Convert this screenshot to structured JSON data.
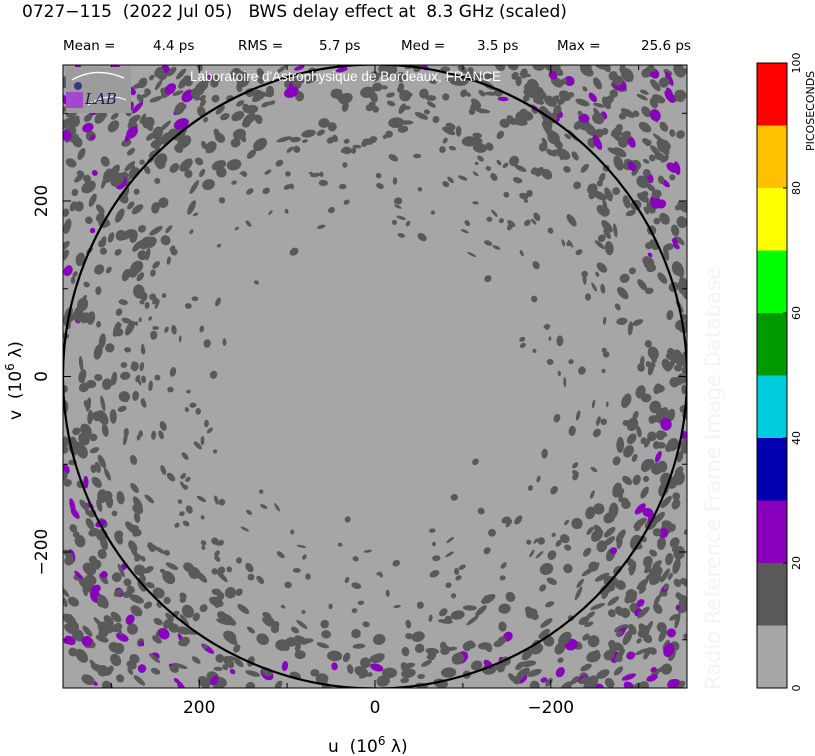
{
  "chart_data": {
    "type": "heatmap",
    "title": "0727−115  (2022 Jul 05)   BWS delay effect at  8.3 GHz (scaled)",
    "stats": [
      {
        "label": "Mean =",
        "value": "4.4 ps",
        "number": 4.4
      },
      {
        "label": "RMS =",
        "value": "5.7 ps",
        "number": 5.7
      },
      {
        "label": "Med =",
        "value": "3.5 ps",
        "number": 3.5
      },
      {
        "label": "Max =",
        "value": "25.6 ps",
        "number": 25.6
      }
    ],
    "xlabel": {
      "main": "u  (10",
      "sup": "6",
      "tail": " λ)"
    },
    "ylabel": {
      "main": "v  (10",
      "sup": "6",
      "tail": " λ)"
    },
    "xlim": [
      355,
      -355
    ],
    "ylim": [
      -355,
      355
    ],
    "xticks": [
      {
        "value": 200,
        "label": "200"
      },
      {
        "value": 0,
        "label": "0"
      },
      {
        "value": -200,
        "label": "−200"
      }
    ],
    "yticks": [
      {
        "value": 200,
        "label": "200"
      },
      {
        "value": 0,
        "label": "0"
      },
      {
        "value": -200,
        "label": "−200"
      }
    ],
    "circle_radius": 355,
    "colorbar": {
      "label": "PICOSECONDS",
      "min": 0,
      "max": 100,
      "ticks": [
        {
          "value": 0,
          "label": "0"
        },
        {
          "value": 20,
          "label": "20"
        },
        {
          "value": 40,
          "label": "40"
        },
        {
          "value": 60,
          "label": "60"
        },
        {
          "value": 80,
          "label": "80"
        },
        {
          "value": 100,
          "label": "100"
        }
      ],
      "bins": [
        {
          "from": 0,
          "to": 10,
          "color": "#a6a6a6"
        },
        {
          "from": 10,
          "to": 20,
          "color": "#595959"
        },
        {
          "from": 20,
          "to": 30,
          "color": "#8800bb"
        },
        {
          "from": 30,
          "to": 40,
          "color": "#0000b0"
        },
        {
          "from": 40,
          "to": 50,
          "color": "#00ccdd"
        },
        {
          "from": 50,
          "to": 60,
          "color": "#009900"
        },
        {
          "from": 60,
          "to": 70,
          "color": "#00ff00"
        },
        {
          "from": 70,
          "to": 80,
          "color": "#ffff00"
        },
        {
          "from": 80,
          "to": 90,
          "color": "#ffc000"
        },
        {
          "from": 90,
          "to": 100,
          "color": "#ff0000"
        }
      ]
    },
    "background_color": "#a6a6a6",
    "blob_color": "#595959",
    "hotspot_color": "#8800bb"
  },
  "logo": {
    "text": "LAB"
  },
  "credit": "Laboratoire d'Astrophysique de Bordeaux, FRANCE",
  "watermark": "Radio Reference Frame Image Database"
}
